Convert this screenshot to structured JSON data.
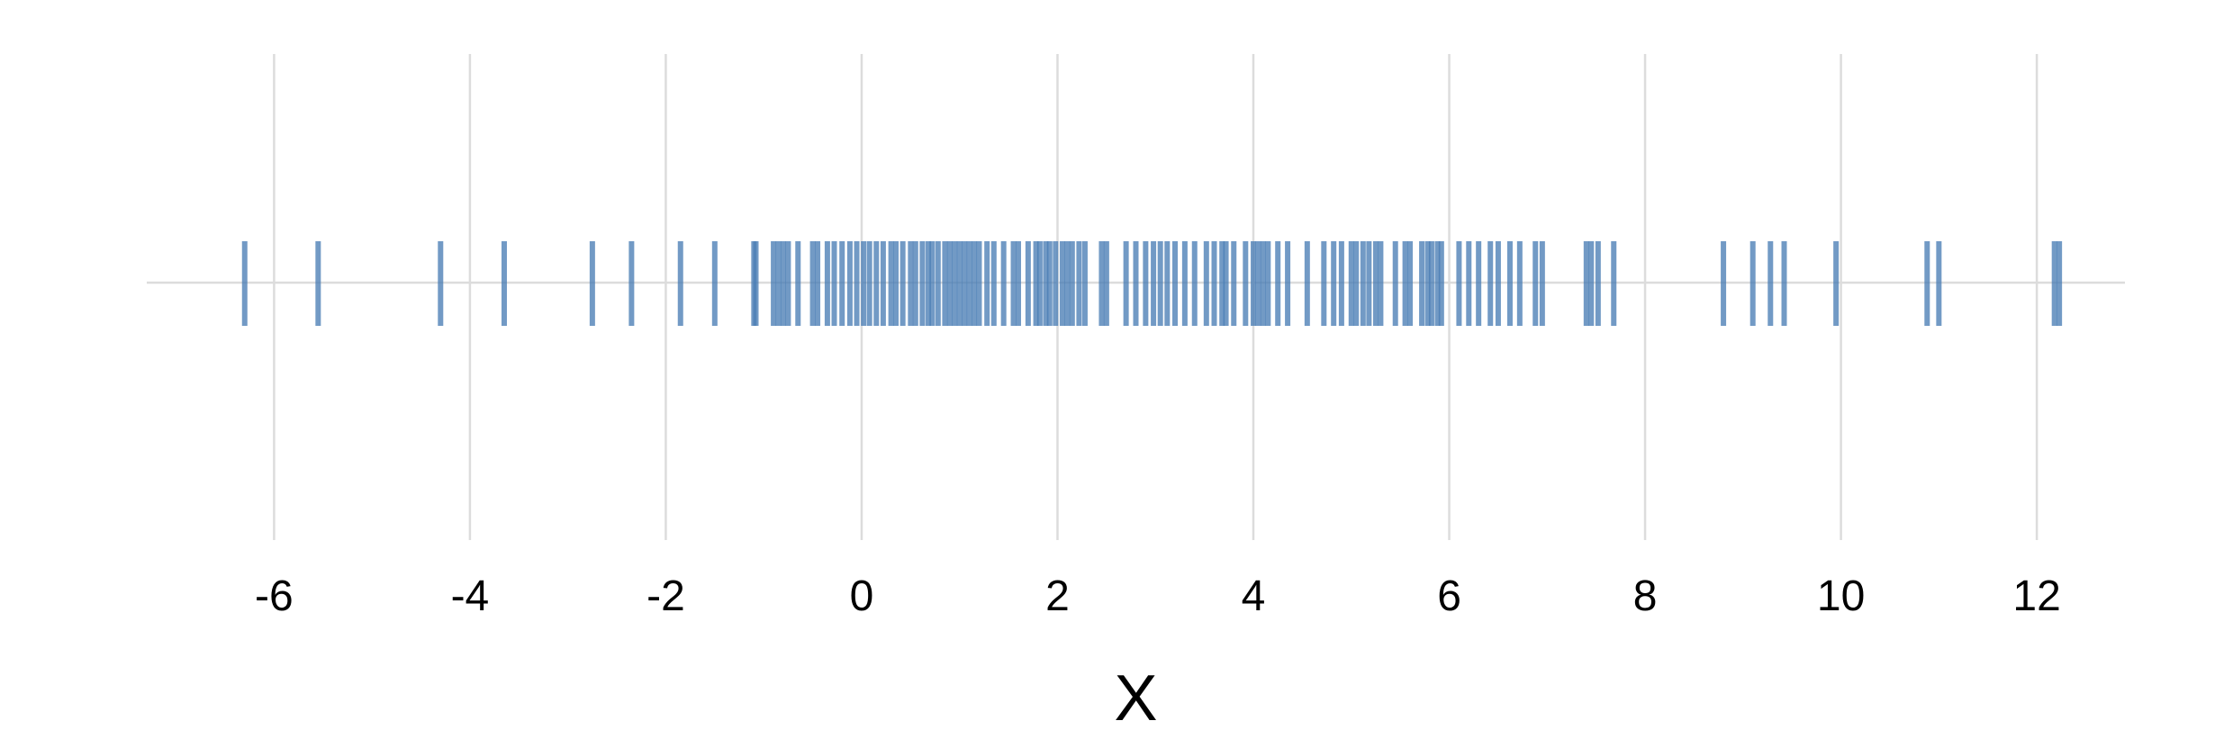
{
  "chart_data": {
    "type": "rug",
    "title": "",
    "xlabel": "X",
    "ylabel": "",
    "xlim": [
      -7.3,
      12.9
    ],
    "x_ticks": [
      -6,
      -4,
      -2,
      0,
      2,
      4,
      6,
      8,
      10,
      12
    ],
    "x_tick_labels": [
      "-6",
      "-4",
      "-2",
      "0",
      "2",
      "4",
      "6",
      "8",
      "10",
      "12"
    ],
    "grid": true,
    "legend": "none",
    "colors": {
      "mark": "#4a7db5",
      "grid": "#dcdcdc",
      "baseline": "#dcdcdc"
    },
    "values": [
      -6.3,
      -5.55,
      -4.3,
      -3.65,
      -2.75,
      -2.35,
      -1.85,
      -1.5,
      -1.1,
      -1.08,
      -0.9,
      -0.85,
      -0.8,
      -0.75,
      -0.65,
      -0.5,
      -0.45,
      -0.35,
      -0.28,
      -0.2,
      -0.12,
      -0.05,
      0.02,
      0.08,
      0.15,
      0.22,
      0.3,
      0.35,
      0.42,
      0.5,
      0.55,
      0.62,
      0.68,
      0.72,
      0.78,
      0.85,
      0.9,
      0.95,
      1.0,
      1.05,
      1.1,
      1.15,
      1.2,
      1.28,
      1.35,
      1.45,
      1.55,
      1.6,
      1.7,
      1.78,
      1.82,
      1.88,
      1.92,
      1.98,
      2.05,
      2.1,
      2.15,
      2.22,
      2.28,
      2.45,
      2.5,
      2.7,
      2.8,
      2.9,
      2.98,
      3.05,
      3.12,
      3.2,
      3.3,
      3.4,
      3.52,
      3.6,
      3.68,
      3.72,
      3.8,
      3.92,
      4.0,
      4.05,
      4.1,
      4.15,
      4.25,
      4.35,
      4.55,
      4.72,
      4.82,
      4.9,
      5.0,
      5.05,
      5.12,
      5.18,
      5.25,
      5.3,
      5.45,
      5.55,
      5.6,
      5.72,
      5.78,
      5.82,
      5.88,
      5.92,
      6.1,
      6.2,
      6.3,
      6.42,
      6.5,
      6.62,
      6.72,
      6.88,
      6.95,
      7.4,
      7.45,
      7.52,
      7.68,
      8.8,
      9.1,
      9.28,
      9.42,
      9.95,
      10.88,
      11.0,
      12.18,
      12.23
    ]
  }
}
